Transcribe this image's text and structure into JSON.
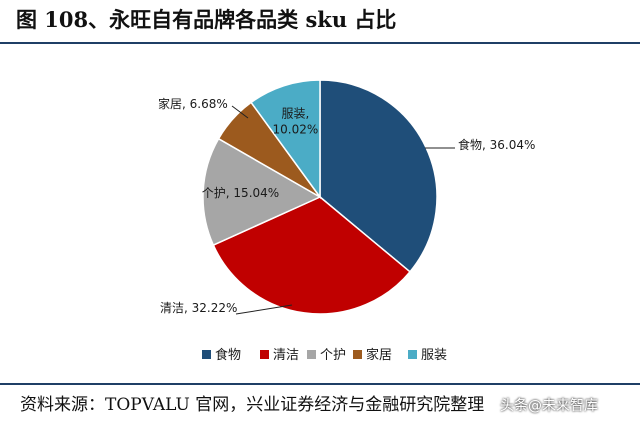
{
  "figure": {
    "title": "图 108、永旺自有品牌各品类 sku 占比",
    "source": "资料来源：TOPVALU 官网，兴业证券经济与金融研究院整理",
    "watermark": "头条@未来智库"
  },
  "chart_data": {
    "type": "pie",
    "categories": [
      "食物",
      "清洁",
      "个护",
      "家居",
      "服装"
    ],
    "values": [
      36.04,
      32.22,
      15.04,
      6.68,
      10.02
    ],
    "labels": [
      "食物, 36.04%",
      "清洁, 32.22%",
      "个护, 15.04%",
      "家居, 6.68%",
      "服装, 10.02%"
    ],
    "colors": [
      "#1f4e79",
      "#c00000",
      "#a6a6a6",
      "#9c5a1e",
      "#4bacc6"
    ],
    "start_angle_deg": 0,
    "direction": "clockwise",
    "legend": "bottom"
  }
}
